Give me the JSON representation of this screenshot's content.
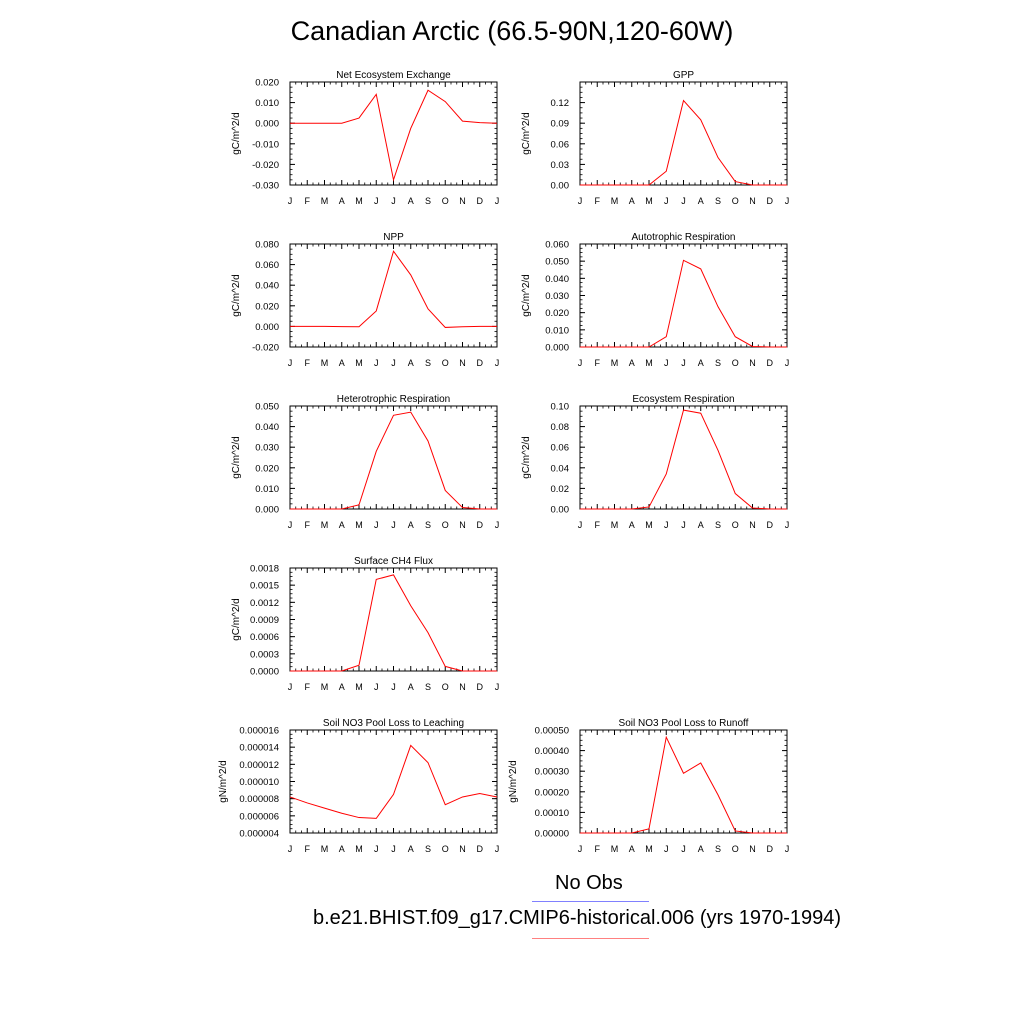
{
  "title": "Canadian Arctic (66.5-90N,120-60W)",
  "legend": {
    "no_obs": "No Obs",
    "run": "b.e21.BHIST.f09_g17.CMIP6-historical.006 (yrs 1970-1994)",
    "obs_color": "#8080ff",
    "run_color": "#ff8080"
  },
  "chart_data": [
    {
      "type": "line",
      "title": "Net Ecosystem Exchange",
      "ylabel": "gC/m^2/d",
      "x": [
        "J",
        "F",
        "M",
        "A",
        "M",
        "J",
        "J",
        "A",
        "S",
        "O",
        "N",
        "D",
        "J"
      ],
      "ylim": [
        -0.03,
        0.02
      ],
      "yticks": [
        "0.020",
        "0.010",
        "0.000",
        "-0.010",
        "-0.020",
        "-0.030"
      ],
      "series": [
        {
          "color": "#ff0000",
          "values": [
            0.0,
            0.0,
            0.0,
            0.0,
            0.0025,
            0.014,
            -0.0275,
            -0.0025,
            0.016,
            0.0105,
            0.001,
            0.0003,
            0.0
          ]
        }
      ]
    },
    {
      "type": "line",
      "title": "GPP",
      "ylabel": "gC/m^2/d",
      "x": [
        "J",
        "F",
        "M",
        "A",
        "M",
        "J",
        "J",
        "A",
        "S",
        "O",
        "N",
        "D",
        "J"
      ],
      "ylim": [
        0.0,
        0.15
      ],
      "yticks": [
        "0.12",
        "0.09",
        "0.06",
        "0.03",
        "0.00"
      ],
      "series": [
        {
          "color": "#ff0000",
          "values": [
            0.0,
            0.0,
            0.0,
            0.0,
            0.0,
            0.02,
            0.123,
            0.095,
            0.04,
            0.005,
            0.0,
            0.0,
            0.0
          ]
        }
      ]
    },
    {
      "type": "line",
      "title": "NPP",
      "ylabel": "gC/m^2/d",
      "x": [
        "J",
        "F",
        "M",
        "A",
        "M",
        "J",
        "J",
        "A",
        "S",
        "O",
        "N",
        "D",
        "J"
      ],
      "ylim": [
        -0.02,
        0.08
      ],
      "yticks": [
        "0.080",
        "0.060",
        "0.040",
        "0.020",
        "0.000",
        "-0.020"
      ],
      "series": [
        {
          "color": "#ff0000",
          "values": [
            0.0,
            0.0,
            0.0,
            -0.0002,
            -0.0003,
            0.015,
            0.073,
            0.05,
            0.017,
            -0.001,
            -0.0003,
            0.0,
            0.0
          ]
        }
      ]
    },
    {
      "type": "line",
      "title": "Autotrophic Respiration",
      "ylabel": "gC/m^2/d",
      "x": [
        "J",
        "F",
        "M",
        "A",
        "M",
        "J",
        "J",
        "A",
        "S",
        "O",
        "N",
        "D",
        "J"
      ],
      "ylim": [
        0.0,
        0.06
      ],
      "yticks": [
        "0.060",
        "0.050",
        "0.040",
        "0.030",
        "0.020",
        "0.010",
        "0.000"
      ],
      "series": [
        {
          "color": "#ff0000",
          "values": [
            0.0,
            0.0,
            0.0,
            0.0,
            0.0,
            0.006,
            0.0505,
            0.0455,
            0.0235,
            0.006,
            0.0003,
            0.0,
            0.0
          ]
        }
      ]
    },
    {
      "type": "line",
      "title": "Heterotrophic Respiration",
      "ylabel": "gC/m^2/d",
      "x": [
        "J",
        "F",
        "M",
        "A",
        "M",
        "J",
        "J",
        "A",
        "S",
        "O",
        "N",
        "D",
        "J"
      ],
      "ylim": [
        0.0,
        0.05
      ],
      "yticks": [
        "0.050",
        "0.040",
        "0.030",
        "0.020",
        "0.010",
        "0.000"
      ],
      "series": [
        {
          "color": "#ff0000",
          "values": [
            0.0,
            0.0,
            0.0,
            0.0,
            0.002,
            0.028,
            0.0455,
            0.047,
            0.033,
            0.009,
            0.0007,
            0.0,
            0.0
          ]
        }
      ]
    },
    {
      "type": "line",
      "title": "Ecosystem Respiration",
      "ylabel": "gC/m^2/d",
      "x": [
        "J",
        "F",
        "M",
        "A",
        "M",
        "J",
        "J",
        "A",
        "S",
        "O",
        "N",
        "D",
        "J"
      ],
      "ylim": [
        0.0,
        0.1
      ],
      "yticks": [
        "0.10",
        "0.08",
        "0.06",
        "0.04",
        "0.02",
        "0.00"
      ],
      "series": [
        {
          "color": "#ff0000",
          "values": [
            0.0,
            0.0,
            0.0,
            0.0,
            0.002,
            0.034,
            0.096,
            0.093,
            0.057,
            0.015,
            0.001,
            0.0,
            0.0
          ]
        }
      ]
    },
    {
      "type": "line",
      "title": "Surface CH4 Flux",
      "ylabel": "gC/m^2/d",
      "x": [
        "J",
        "F",
        "M",
        "A",
        "M",
        "J",
        "J",
        "A",
        "S",
        "O",
        "N",
        "D",
        "J"
      ],
      "ylim": [
        0.0,
        0.0018
      ],
      "yticks": [
        "0.0018",
        "0.0015",
        "0.0012",
        "0.0009",
        "0.0006",
        "0.0003",
        "0.0000"
      ],
      "series": [
        {
          "color": "#ff0000",
          "values": [
            0.0,
            0.0,
            0.0,
            0.0,
            0.0001,
            0.0016,
            0.00168,
            0.00114,
            0.00067,
            8e-05,
            0.0,
            0.0,
            0.0
          ]
        }
      ]
    },
    {
      "type": "line",
      "title": "Soil NO3 Pool Loss to Leaching",
      "ylabel": "gN/m^2/d",
      "x": [
        "J",
        "F",
        "M",
        "A",
        "M",
        "J",
        "J",
        "A",
        "S",
        "O",
        "N",
        "D",
        "J"
      ],
      "ylim": [
        4e-06,
        1.6e-05
      ],
      "yticks": [
        "0.000016",
        "0.000014",
        "0.000012",
        "0.000010",
        "0.000008",
        "0.000006",
        "0.000004"
      ],
      "series": [
        {
          "color": "#ff0000",
          "values": [
            8.2e-06,
            7.5e-06,
            6.9e-06,
            6.3e-06,
            5.8e-06,
            5.7e-06,
            8.5e-06,
            1.42e-05,
            1.22e-05,
            7.3e-06,
            8.2e-06,
            8.6e-06,
            8.2e-06
          ]
        }
      ]
    },
    {
      "type": "line",
      "title": "Soil NO3 Pool Loss to Runoff",
      "ylabel": "gN/m^2/d",
      "x": [
        "J",
        "F",
        "M",
        "A",
        "M",
        "J",
        "J",
        "A",
        "S",
        "O",
        "N",
        "D",
        "J"
      ],
      "ylim": [
        0.0,
        0.0005
      ],
      "yticks": [
        "0.00050",
        "0.00040",
        "0.00030",
        "0.00020",
        "0.00010",
        "0.00000"
      ],
      "series": [
        {
          "color": "#ff0000",
          "values": [
            0.0,
            0.0,
            0.0,
            0.0,
            2e-05,
            0.000465,
            0.00029,
            0.00034,
            0.000185,
            1e-05,
            0.0,
            0.0,
            0.0
          ]
        }
      ]
    }
  ]
}
